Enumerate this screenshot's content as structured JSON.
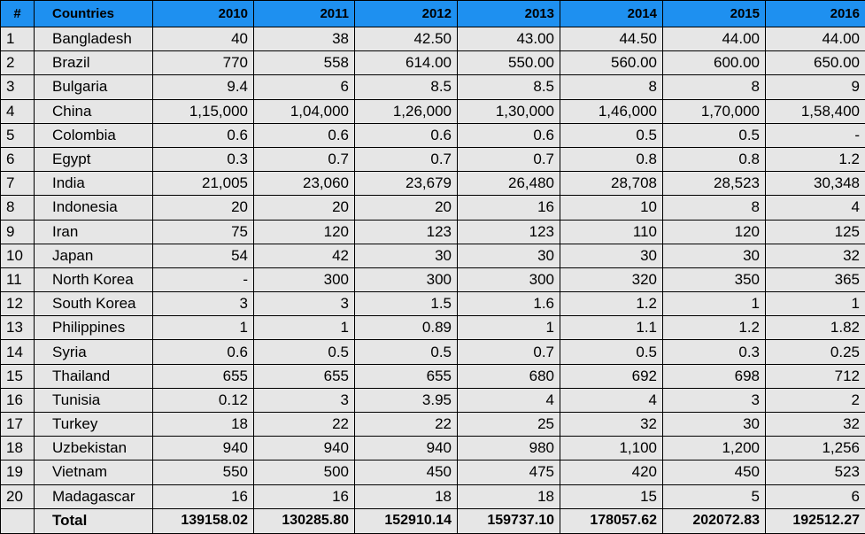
{
  "header": {
    "num": "#",
    "country": "Countries",
    "years": [
      "2010",
      "2011",
      "2012",
      "2013",
      "2014",
      "2015",
      "2016"
    ]
  },
  "rows": [
    {
      "num": "1",
      "country": "Bangladesh",
      "values": [
        "40",
        "38",
        "42.50",
        "43.00",
        "44.50",
        "44.00",
        "44.00"
      ]
    },
    {
      "num": "2",
      "country": "Brazil",
      "values": [
        "770",
        "558",
        "614.00",
        "550.00",
        "560.00",
        "600.00",
        "650.00"
      ]
    },
    {
      "num": "3",
      "country": "Bulgaria",
      "values": [
        "9.4",
        "6",
        "8.5",
        "8.5",
        "8",
        "8",
        "9"
      ]
    },
    {
      "num": "4",
      "country": "China",
      "values": [
        "1,15,000",
        "1,04,000",
        "1,26,000",
        "1,30,000",
        "1,46,000",
        "1,70,000",
        "1,58,400"
      ]
    },
    {
      "num": "5",
      "country": "Colombia",
      "values": [
        "0.6",
        "0.6",
        "0.6",
        "0.6",
        "0.5",
        "0.5",
        "-"
      ]
    },
    {
      "num": "6",
      "country": "Egypt",
      "values": [
        "0.3",
        "0.7",
        "0.7",
        "0.7",
        "0.8",
        "0.8",
        "1.2"
      ]
    },
    {
      "num": "7",
      "country": "India",
      "values": [
        "21,005",
        "23,060",
        "23,679",
        "26,480",
        "28,708",
        "28,523",
        "30,348"
      ]
    },
    {
      "num": "8",
      "country": "Indonesia",
      "values": [
        "20",
        "20",
        "20",
        "16",
        "10",
        "8",
        "4"
      ]
    },
    {
      "num": "9",
      "country": "Iran",
      "values": [
        "75",
        "120",
        "123",
        "123",
        "110",
        "120",
        "125"
      ]
    },
    {
      "num": "10",
      "country": "Japan",
      "values": [
        "54",
        "42",
        "30",
        "30",
        "30",
        "30",
        "32"
      ]
    },
    {
      "num": "11",
      "country": "North Korea",
      "values": [
        "-",
        "300",
        "300",
        "300",
        "320",
        "350",
        "365"
      ]
    },
    {
      "num": "12",
      "country": "South Korea",
      "values": [
        "3",
        "3",
        "1.5",
        "1.6",
        "1.2",
        "1",
        "1"
      ]
    },
    {
      "num": "13",
      "country": "Philippines",
      "values": [
        "1",
        "1",
        "0.89",
        "1",
        "1.1",
        "1.2",
        "1.82"
      ]
    },
    {
      "num": "14",
      "country": "Syria",
      "values": [
        "0.6",
        "0.5",
        "0.5",
        "0.7",
        "0.5",
        "0.3",
        "0.25"
      ]
    },
    {
      "num": "15",
      "country": "Thailand",
      "values": [
        "655",
        "655",
        "655",
        "680",
        "692",
        "698",
        "712"
      ]
    },
    {
      "num": "16",
      "country": "Tunisia",
      "values": [
        "0.12",
        "3",
        "3.95",
        "4",
        "4",
        "3",
        "2"
      ]
    },
    {
      "num": "17",
      "country": "Turkey",
      "values": [
        "18",
        "22",
        "22",
        "25",
        "32",
        "30",
        "32"
      ]
    },
    {
      "num": "18",
      "country": "Uzbekistan",
      "values": [
        "940",
        "940",
        "940",
        "980",
        "1,100",
        "1,200",
        "1,256"
      ]
    },
    {
      "num": "19",
      "country": "Vietnam",
      "values": [
        "550",
        "500",
        "450",
        "475",
        "420",
        "450",
        "523"
      ]
    },
    {
      "num": "20",
      "country": "Madagascar",
      "values": [
        "16",
        "16",
        "18",
        "18",
        "15",
        "5",
        "6"
      ]
    }
  ],
  "total": {
    "num": "",
    "label": "Total",
    "values": [
      "139158.02",
      "130285.80",
      "152910.14",
      "159737.10",
      "178057.62",
      "202072.83",
      "192512.27"
    ]
  },
  "colors": {
    "header_bg": "#1e90f0",
    "cell_bg": "#e6e6e6",
    "border": "#000000"
  }
}
